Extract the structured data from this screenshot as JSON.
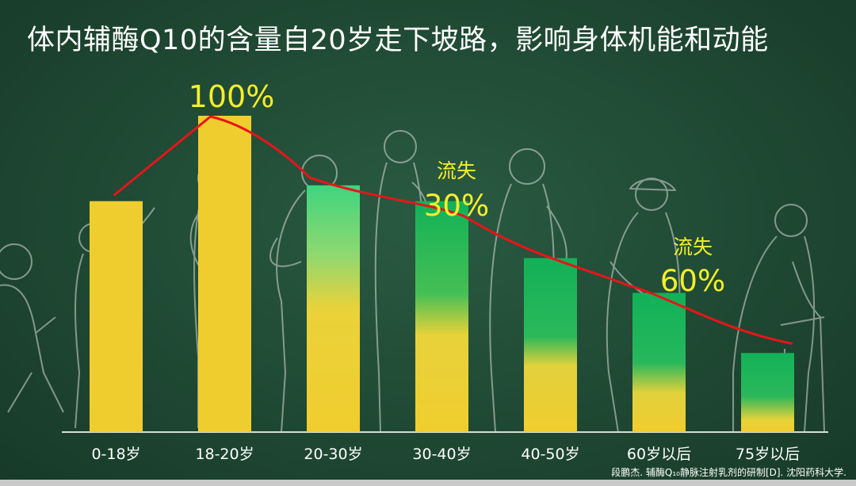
{
  "title": "体内辅酶Q10的含量自20岁走下坡路，影响身体机能和动能",
  "source": "段鹏杰. 辅酶Q₁₀静脉注射乳剂的研制[D]. 沈阳药科大学.",
  "colors": {
    "background": "#214c36",
    "bar_yellow": "#f0cd2e",
    "bar_green": "#17b35a",
    "trend_line": "#e8141a",
    "label_yellow": "#f5ef2a",
    "text_white": "#ffffff"
  },
  "chart_data": {
    "type": "bar",
    "categories": [
      "0-18岁",
      "18-20岁",
      "20-30岁",
      "30-40岁",
      "40-50岁",
      "60岁以后",
      "75岁以后"
    ],
    "values": [
      73,
      100,
      78,
      73,
      55,
      44,
      25
    ],
    "ylim": [
      0,
      100
    ],
    "peak_label": "100%",
    "trend_line": true,
    "annotations": [
      {
        "text": "流失",
        "value": "30%",
        "category": "30-40岁"
      },
      {
        "text": "流失",
        "value": "60%",
        "category": "60岁以后"
      }
    ],
    "grid": false,
    "legend": "none"
  }
}
